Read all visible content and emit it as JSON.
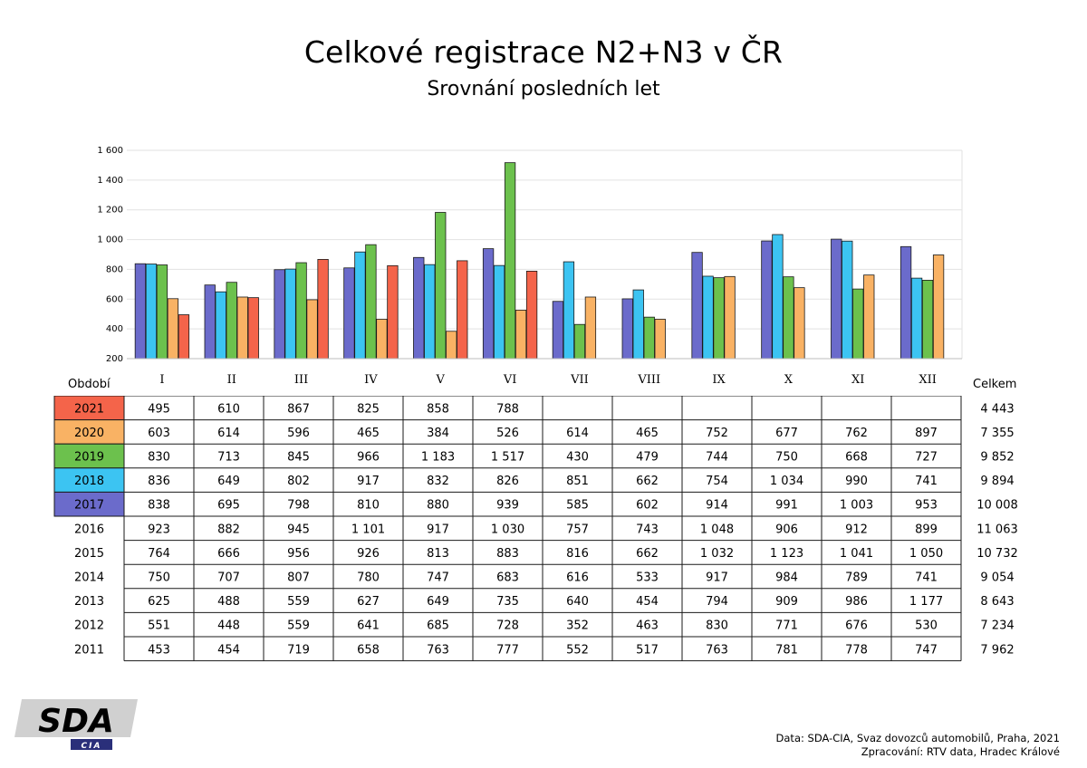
{
  "header": {
    "title": "Celkové registrace N2+N3 v ČR",
    "subtitle": "Srovnání posledních let"
  },
  "labels": {
    "period": "Období",
    "total": "Celkem"
  },
  "colors": {
    "2021": "#f4644a",
    "2020": "#f9b264",
    "2019": "#6cc14d",
    "2018": "#3cc4f2",
    "2017": "#6b6bcb"
  },
  "chart_data": {
    "type": "bar",
    "title": "Celkové registrace N2+N3 v ČR",
    "subtitle": "Srovnání posledních let",
    "categories": [
      "I",
      "II",
      "III",
      "IV",
      "V",
      "VI",
      "VII",
      "VIII",
      "IX",
      "X",
      "XI",
      "XII"
    ],
    "ylim": [
      200,
      1600
    ],
    "yticks": [
      "200",
      "400",
      "600",
      "800",
      "1 000",
      "1 200",
      "1 400",
      "1 600"
    ],
    "ytick_values": [
      200,
      400,
      600,
      800,
      1000,
      1200,
      1400,
      1600
    ],
    "grid": true,
    "series": [
      {
        "name": "2017",
        "values": [
          838,
          695,
          798,
          810,
          880,
          939,
          585,
          602,
          914,
          991,
          1003,
          953
        ]
      },
      {
        "name": "2018",
        "values": [
          836,
          649,
          802,
          917,
          832,
          826,
          851,
          662,
          754,
          1034,
          990,
          741
        ]
      },
      {
        "name": "2019",
        "values": [
          830,
          713,
          845,
          966,
          1183,
          1517,
          430,
          479,
          744,
          750,
          668,
          727
        ]
      },
      {
        "name": "2020",
        "values": [
          603,
          614,
          596,
          465,
          384,
          526,
          614,
          465,
          752,
          677,
          762,
          897
        ]
      },
      {
        "name": "2021",
        "values": [
          495,
          610,
          867,
          825,
          858,
          788,
          null,
          null,
          null,
          null,
          null,
          null
        ]
      }
    ]
  },
  "table": {
    "rows": [
      {
        "year": "2021",
        "colored": true,
        "values": [
          "495",
          "610",
          "867",
          "825",
          "858",
          "788",
          "",
          "",
          "",
          "",
          "",
          ""
        ],
        "total": "4 443"
      },
      {
        "year": "2020",
        "colored": true,
        "values": [
          "603",
          "614",
          "596",
          "465",
          "384",
          "526",
          "614",
          "465",
          "752",
          "677",
          "762",
          "897"
        ],
        "total": "7 355"
      },
      {
        "year": "2019",
        "colored": true,
        "values": [
          "830",
          "713",
          "845",
          "966",
          "1 183",
          "1 517",
          "430",
          "479",
          "744",
          "750",
          "668",
          "727"
        ],
        "total": "9 852"
      },
      {
        "year": "2018",
        "colored": true,
        "values": [
          "836",
          "649",
          "802",
          "917",
          "832",
          "826",
          "851",
          "662",
          "754",
          "1 034",
          "990",
          "741"
        ],
        "total": "9 894"
      },
      {
        "year": "2017",
        "colored": true,
        "values": [
          "838",
          "695",
          "798",
          "810",
          "880",
          "939",
          "585",
          "602",
          "914",
          "991",
          "1 003",
          "953"
        ],
        "total": "10 008"
      },
      {
        "year": "2016",
        "colored": false,
        "values": [
          "923",
          "882",
          "945",
          "1 101",
          "917",
          "1 030",
          "757",
          "743",
          "1 048",
          "906",
          "912",
          "899"
        ],
        "total": "11 063"
      },
      {
        "year": "2015",
        "colored": false,
        "values": [
          "764",
          "666",
          "956",
          "926",
          "813",
          "883",
          "816",
          "662",
          "1 032",
          "1 123",
          "1 041",
          "1 050"
        ],
        "total": "10 732"
      },
      {
        "year": "2014",
        "colored": false,
        "values": [
          "750",
          "707",
          "807",
          "780",
          "747",
          "683",
          "616",
          "533",
          "917",
          "984",
          "789",
          "741"
        ],
        "total": "9 054"
      },
      {
        "year": "2013",
        "colored": false,
        "values": [
          "625",
          "488",
          "559",
          "627",
          "649",
          "735",
          "640",
          "454",
          "794",
          "909",
          "986",
          "1 177"
        ],
        "total": "8 643"
      },
      {
        "year": "2012",
        "colored": false,
        "values": [
          "551",
          "448",
          "559",
          "641",
          "685",
          "728",
          "352",
          "463",
          "830",
          "771",
          "676",
          "530"
        ],
        "total": "7 234"
      },
      {
        "year": "2011",
        "colored": false,
        "values": [
          "453",
          "454",
          "719",
          "658",
          "763",
          "777",
          "552",
          "517",
          "763",
          "781",
          "778",
          "747"
        ],
        "total": "7 962"
      }
    ]
  },
  "logo": {
    "main": "SDA",
    "sub": "CIA"
  },
  "footer": {
    "source": "Data: SDA-CIA, Svaz dovozců automobilů, Praha, 2021",
    "processed": "Zpracování: RTV data, Hradec Králové"
  }
}
